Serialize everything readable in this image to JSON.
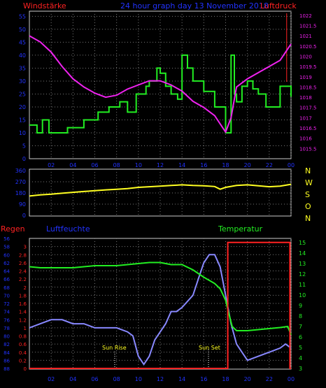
{
  "header": {
    "wind_title": "Windstärke",
    "date_title": "24 hour graph day 13 November 2018",
    "pressure_title": "Luftdruck"
  },
  "direction_letters": [
    "N",
    "W",
    "S",
    "O",
    "N"
  ],
  "lower_titles": {
    "rain": "Regen",
    "humidity": "Luftfeuchte",
    "temperature": "Temperatur"
  },
  "sun_labels": {
    "sunrise": "Sun Rise",
    "sunset": "Sun Set"
  },
  "x_ticks": [
    "02",
    "04",
    "06",
    "08",
    "10",
    "12",
    "14",
    "16",
    "18",
    "20",
    "22",
    "00"
  ],
  "colors": {
    "wind": "#22ee22",
    "pressure": "#ee22ee",
    "direction": "#ffff22",
    "humidity": "#8888ff",
    "temperature": "#22ee22",
    "rain": "#ff2222",
    "label_blue": "#2233ff",
    "label_red": "#ff2222",
    "label_green": "#22ee22",
    "label_magenta": "#ee22ee",
    "label_yellow": "#ffff22"
  },
  "chart_data": [
    {
      "type": "line",
      "name": "wind-pressure",
      "xlim": [
        0,
        24
      ],
      "y_left": {
        "label": "Windstärke",
        "ticks": [
          0,
          5,
          10,
          15,
          20,
          25,
          30,
          35,
          40,
          45,
          50,
          55
        ]
      },
      "y_right": {
        "label": "Luftdruck",
        "ticks": [
          1015.5,
          1016,
          1016.5,
          1017,
          1017.5,
          1018,
          1018.5,
          1019,
          1019.5,
          1020,
          1020.5,
          1021,
          1021.5,
          1022
        ]
      },
      "series": [
        {
          "name": "Windstärke",
          "axis": "left",
          "step": true,
          "x": [
            0,
            0.7,
            1.2,
            1.8,
            3.5,
            5,
            6.3,
            7.3,
            8.3,
            9,
            9.8,
            10.7,
            11,
            11.7,
            12,
            12.5,
            13,
            13.6,
            14,
            14.5,
            15,
            16,
            17,
            18,
            18.5,
            18.8,
            19,
            19.5,
            20,
            20.5,
            21,
            21.7,
            22.5,
            23,
            24
          ],
          "y": [
            13,
            10,
            15,
            10,
            12,
            15,
            18,
            20,
            22,
            18,
            25,
            28,
            30,
            35,
            33,
            28,
            25,
            23,
            40,
            35,
            30,
            26,
            20,
            10,
            40,
            25,
            22,
            28,
            30,
            27,
            25,
            20,
            20,
            28,
            24
          ]
        },
        {
          "name": "Luftdruck",
          "axis": "right",
          "x": [
            0,
            1,
            2,
            3,
            4,
            5,
            6,
            7,
            8,
            9,
            10,
            11,
            12,
            13,
            14,
            15,
            16,
            17,
            18,
            18.5,
            19,
            20,
            21,
            22,
            23,
            24
          ],
          "y": [
            1021,
            1020.7,
            1020.2,
            1019.5,
            1018.9,
            1018.5,
            1018.2,
            1018,
            1018.1,
            1018.4,
            1018.6,
            1018.8,
            1018.8,
            1018.6,
            1018.3,
            1017.8,
            1017.5,
            1017.1,
            1016.3,
            1017,
            1018.5,
            1018.9,
            1019.2,
            1019.5,
            1019.8,
            1020.6
          ]
        }
      ]
    },
    {
      "type": "line",
      "name": "wind-direction",
      "xlim": [
        0,
        24
      ],
      "y_left": {
        "ticks": [
          0,
          90,
          180,
          270,
          360
        ]
      },
      "series": [
        {
          "name": "direction",
          "x": [
            0,
            1,
            2,
            3,
            4,
            5,
            6,
            7,
            8,
            9,
            10,
            11,
            12,
            13,
            14,
            15,
            16,
            17,
            17.5,
            18,
            19,
            20,
            21,
            22,
            23,
            24
          ],
          "y": [
            155,
            165,
            170,
            178,
            185,
            192,
            198,
            205,
            210,
            215,
            225,
            230,
            235,
            240,
            245,
            240,
            238,
            232,
            210,
            225,
            240,
            245,
            238,
            230,
            235,
            250
          ]
        }
      ]
    },
    {
      "type": "line",
      "name": "rain-humidity-temperature",
      "xlim": [
        0,
        24
      ],
      "y_rain": {
        "label": "Regen",
        "ticks": [
          0,
          0.2,
          0.4,
          0.6,
          0.8,
          1,
          1.2,
          1.4,
          1.6,
          1.8,
          2,
          2.2,
          2.4,
          2.6,
          2.8,
          3
        ]
      },
      "y_humidity": {
        "label": "Luftfeuchte",
        "ticks": [
          56,
          58,
          60,
          62,
          64,
          66,
          68,
          70,
          72,
          74,
          76,
          78,
          80,
          82,
          84,
          86,
          88
        ]
      },
      "y_temperature": {
        "label": "Temperatur",
        "ticks": [
          3,
          4,
          5,
          6,
          7,
          8,
          9,
          10,
          11,
          12,
          13,
          14,
          15
        ]
      },
      "series": [
        {
          "name": "Regen",
          "axis": "rain",
          "step": true,
          "x": [
            0,
            18.2,
            18.2,
            23.9,
            23.9,
            24
          ],
          "y": [
            0,
            0,
            3.1,
            3.1,
            0,
            0
          ]
        },
        {
          "name": "Luftfeuchte",
          "axis": "humidity",
          "x": [
            0,
            1,
            2,
            3,
            4,
            5,
            6,
            7,
            8,
            9,
            9.5,
            10,
            10.5,
            11,
            11.5,
            12,
            12.5,
            13,
            13.5,
            14,
            15,
            15.5,
            16,
            16.5,
            17,
            17.5,
            18,
            18.5,
            19,
            19.5,
            20,
            21,
            22,
            23,
            23.5,
            24
          ],
          "y": [
            78,
            77,
            76,
            76,
            77,
            77,
            78,
            78,
            78,
            79,
            80,
            85,
            87,
            85,
            81,
            79,
            77,
            74,
            74,
            73,
            70,
            66,
            62,
            60,
            60,
            63,
            70,
            77,
            82,
            84,
            86,
            85,
            84,
            83,
            82,
            83
          ]
        },
        {
          "name": "Temperatur",
          "axis": "temperature",
          "x": [
            0,
            1,
            2,
            3,
            4,
            5,
            6,
            7,
            8,
            9,
            10,
            11,
            12,
            13,
            14,
            15,
            16,
            17,
            17.5,
            18,
            18.3,
            18.6,
            19,
            20,
            21,
            22,
            23,
            23.7,
            24
          ],
          "y": [
            12.7,
            12.6,
            12.6,
            12.6,
            12.6,
            12.7,
            12.8,
            12.8,
            12.8,
            12.9,
            13,
            13.1,
            13.1,
            12.9,
            12.9,
            12.4,
            11.7,
            11.1,
            10.6,
            9.5,
            8.2,
            7,
            6.6,
            6.6,
            6.7,
            6.8,
            6.9,
            7,
            6.2
          ]
        }
      ]
    }
  ]
}
